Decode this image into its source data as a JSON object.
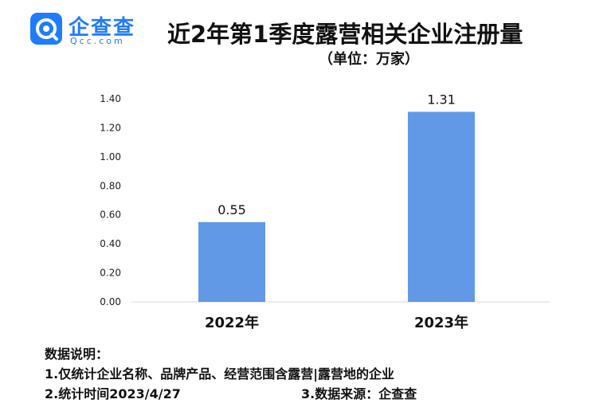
{
  "logo": {
    "text": "企查查",
    "sub": "Qcc.com"
  },
  "title": "近2年第1季度露营相关企业注册量",
  "subtitle": "（单位：万家）",
  "chart_data": {
    "type": "bar",
    "categories": [
      "2022年",
      "2023年"
    ],
    "values": [
      0.55,
      1.31
    ],
    "value_labels": [
      "0.55",
      "1.31"
    ],
    "yticks": [
      "0.00",
      "0.20",
      "0.40",
      "0.60",
      "0.80",
      "1.00",
      "1.20",
      "1.40"
    ],
    "ylim": [
      0,
      1.4
    ],
    "bar_color": "#6199e6",
    "grid": false
  },
  "notes": {
    "heading": "数据说明：",
    "line1": "1.仅统计企业名称、品牌产品、经营范围含露营|露营地的企业",
    "line2": "2.统计时间2023/4/27",
    "line3": "3.数据来源：企查查"
  }
}
